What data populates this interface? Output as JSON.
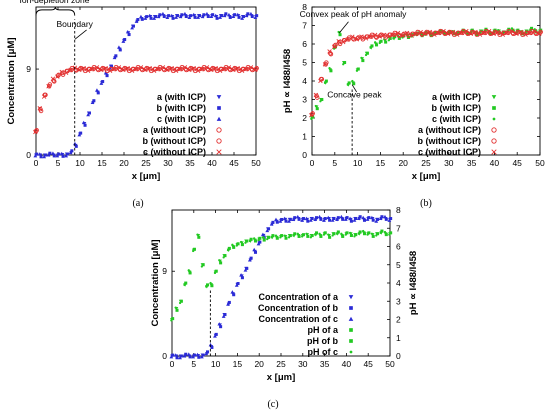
{
  "colors": {
    "blue": "#2b2bd6",
    "red": "#e23030",
    "green": "#22c922",
    "axis": "#000000"
  },
  "chart_data": [
    {
      "id": "a",
      "panel_label": "(a)",
      "type": "scatter",
      "xlabel": "x [μm]",
      "ylabel": "Concentration [μM]",
      "xlim": [
        0,
        50
      ],
      "ylim": [
        0,
        15.5
      ],
      "xticks": [
        0,
        5,
        10,
        15,
        20,
        25,
        30,
        35,
        40,
        45,
        50
      ],
      "yticks": [
        0,
        9
      ],
      "grid": false,
      "legend_position": "right",
      "legend": [
        "a (with ICP)",
        "b (with ICP)",
        "c (with ICP)",
        "a (without ICP)",
        "b (without ICP)",
        "c (without ICP)"
      ],
      "annotations": [
        {
          "text": "Ion-depletion zone",
          "x": 4.2,
          "y": 15.9
        },
        {
          "text": "Boundary",
          "x": 8.8,
          "y": 13.4
        }
      ],
      "dashed_marker": {
        "x": 8.8,
        "y_from": 0,
        "y_to": 14.2
      },
      "series": [
        {
          "name": "with ICP",
          "color": "blue",
          "x": [
            0,
            1,
            2,
            3,
            4,
            5,
            6,
            7,
            8,
            9,
            10,
            11,
            12,
            13,
            14,
            15,
            16,
            17,
            18,
            19,
            20,
            21,
            22,
            23,
            24,
            25,
            26,
            27,
            28,
            29,
            30,
            31,
            32,
            33,
            34,
            35,
            36,
            37,
            38,
            39,
            40,
            41,
            42,
            43,
            44,
            45,
            46,
            47,
            48,
            49,
            50
          ],
          "y": [
            0,
            0,
            0,
            0,
            0,
            0,
            0.05,
            0.1,
            0.25,
            1.0,
            2.2,
            3.3,
            4.4,
            5.5,
            6.6,
            7.6,
            8.5,
            9.3,
            10.2,
            11.1,
            12.0,
            12.8,
            13.5,
            14.0,
            14.3,
            14.4,
            14.5,
            14.5,
            14.5,
            14.6,
            14.5,
            14.5,
            14.6,
            14.5,
            14.6,
            14.5,
            14.6,
            14.6,
            14.5,
            14.6,
            14.6,
            14.5,
            14.6,
            14.6,
            14.5,
            14.6,
            14.6,
            14.5,
            14.6,
            14.6,
            14.5
          ]
        },
        {
          "name": "without ICP",
          "color": "red",
          "x": [
            0,
            1,
            2,
            3,
            4,
            5,
            6,
            7,
            8,
            9,
            10,
            11,
            12,
            13,
            14,
            15,
            16,
            17,
            18,
            19,
            20,
            21,
            22,
            23,
            24,
            25,
            26,
            27,
            28,
            29,
            30,
            31,
            32,
            33,
            34,
            35,
            36,
            37,
            38,
            39,
            40,
            41,
            42,
            43,
            44,
            45,
            46,
            47,
            48,
            49,
            50
          ],
          "y": [
            2.5,
            4.8,
            6.3,
            7.2,
            7.8,
            8.3,
            8.6,
            8.8,
            8.9,
            8.95,
            9.0,
            9.0,
            9.0,
            9.0,
            9.0,
            9.0,
            9.0,
            9.0,
            9.0,
            9.0,
            9.0,
            9.0,
            9.0,
            9.0,
            9.0,
            9.0,
            9.0,
            9.0,
            9.0,
            9.0,
            9.0,
            9.0,
            9.0,
            9.0,
            9.0,
            9.0,
            9.0,
            9.0,
            9.0,
            9.0,
            9.0,
            9.0,
            9.0,
            9.0,
            9.0,
            9.0,
            9.0,
            9.0,
            9.0,
            9.0,
            9.0
          ]
        }
      ]
    },
    {
      "id": "b",
      "panel_label": "(b)",
      "type": "scatter",
      "xlabel": "x [μm]",
      "ylabel": "pH ∝ I488/I458",
      "xlim": [
        0,
        50
      ],
      "ylim": [
        0,
        8
      ],
      "xticks": [
        0,
        5,
        10,
        15,
        20,
        25,
        30,
        35,
        40,
        45,
        50
      ],
      "yticks": [
        0,
        1,
        2,
        3,
        4,
        5,
        6,
        7,
        8
      ],
      "grid": false,
      "legend_position": "right",
      "legend": [
        "a (with ICP)",
        "b (with ICP)",
        "c (with ICP)",
        "a (without ICP)",
        "b (without ICP)",
        "c (without ICP)"
      ],
      "annotations": [
        {
          "text": "Convex peak of pH anomaly",
          "x": 9,
          "y": 7.45
        },
        {
          "text": "Concave peak",
          "x": 9.3,
          "y": 3.1
        }
      ],
      "dashed_marker": {
        "x": 8.8,
        "y_from": 0,
        "y_to": 3.6
      },
      "series": [
        {
          "name": "with ICP",
          "color": "green",
          "x": [
            0,
            1,
            2,
            3,
            4,
            5,
            6,
            7,
            8,
            9,
            10,
            11,
            12,
            13,
            14,
            15,
            16,
            17,
            18,
            19,
            20,
            21,
            22,
            23,
            24,
            25,
            26,
            27,
            28,
            29,
            30,
            31,
            32,
            33,
            34,
            35,
            36,
            37,
            38,
            39,
            40,
            41,
            42,
            43,
            44,
            45,
            46,
            47,
            48,
            49,
            50
          ],
          "y": [
            2.0,
            2.6,
            3.0,
            3.9,
            4.6,
            5.8,
            6.6,
            5.0,
            3.8,
            3.9,
            4.6,
            5.2,
            5.5,
            5.8,
            6.0,
            6.1,
            6.2,
            6.3,
            6.3,
            6.35,
            6.4,
            6.45,
            6.5,
            6.5,
            6.5,
            6.55,
            6.55,
            6.6,
            6.6,
            6.6,
            6.6,
            6.65,
            6.6,
            6.65,
            6.6,
            6.7,
            6.6,
            6.7,
            6.7,
            6.6,
            6.7,
            6.7,
            6.65,
            6.7,
            6.75,
            6.7,
            6.65,
            6.7,
            6.75,
            6.7,
            6.7
          ]
        },
        {
          "name": "without ICP",
          "color": "red",
          "x": [
            0,
            1,
            2,
            3,
            4,
            5,
            6,
            7,
            8,
            9,
            10,
            11,
            12,
            13,
            14,
            15,
            16,
            17,
            18,
            19,
            20,
            21,
            22,
            23,
            24,
            25,
            26,
            27,
            28,
            29,
            30,
            31,
            32,
            33,
            34,
            35,
            36,
            37,
            38,
            39,
            40,
            41,
            42,
            43,
            44,
            45,
            46,
            47,
            48,
            49,
            50
          ],
          "y": [
            2.2,
            3.2,
            4.1,
            4.9,
            5.5,
            5.9,
            6.1,
            6.2,
            6.25,
            6.3,
            6.3,
            6.35,
            6.4,
            6.4,
            6.4,
            6.45,
            6.45,
            6.5,
            6.5,
            6.5,
            6.5,
            6.55,
            6.55,
            6.55,
            6.55,
            6.6,
            6.6,
            6.6,
            6.6,
            6.6,
            6.6,
            6.6,
            6.6,
            6.6,
            6.6,
            6.6,
            6.6,
            6.6,
            6.6,
            6.6,
            6.6,
            6.6,
            6.6,
            6.6,
            6.6,
            6.6,
            6.6,
            6.6,
            6.6,
            6.6,
            6.6
          ]
        }
      ]
    },
    {
      "id": "c",
      "panel_label": "(c)",
      "type": "scatter",
      "xlabel": "x [μm]",
      "ylabel": "Concentration [μM]",
      "y2label": "pH ∝ I488/I458",
      "xlim": [
        0,
        50
      ],
      "ylim": [
        0,
        15.5
      ],
      "y2lim": [
        0,
        8
      ],
      "xticks": [
        0,
        5,
        10,
        15,
        20,
        25,
        30,
        35,
        40,
        45,
        50
      ],
      "yticks": [
        0,
        9
      ],
      "y2ticks": [
        0,
        1,
        2,
        3,
        4,
        5,
        6,
        7,
        8
      ],
      "grid": false,
      "legend_position": "bottom-right",
      "legend": [
        "Concentration of a",
        "Concentration of b",
        "Concentration of c",
        "pH of a",
        "pH of b",
        "pH of c"
      ],
      "dashed_marker": {
        "x": 8.8,
        "y_from": 0,
        "y_to": 3.6,
        "axis": "y2"
      },
      "series": [
        {
          "name": "Concentration",
          "color": "blue",
          "axis": "y",
          "x": [
            0,
            1,
            2,
            3,
            4,
            5,
            6,
            7,
            8,
            9,
            10,
            11,
            12,
            13,
            14,
            15,
            16,
            17,
            18,
            19,
            20,
            21,
            22,
            23,
            24,
            25,
            26,
            27,
            28,
            29,
            30,
            31,
            32,
            33,
            34,
            35,
            36,
            37,
            38,
            39,
            40,
            41,
            42,
            43,
            44,
            45,
            46,
            47,
            48,
            49,
            50
          ],
          "y": [
            0,
            0,
            0,
            0,
            0,
            0,
            0.05,
            0.1,
            0.25,
            1.0,
            2.2,
            3.3,
            4.4,
            5.5,
            6.6,
            7.6,
            8.5,
            9.3,
            10.2,
            11.1,
            12.0,
            12.8,
            13.5,
            14.0,
            14.3,
            14.4,
            14.5,
            14.5,
            14.5,
            14.6,
            14.5,
            14.5,
            14.6,
            14.5,
            14.6,
            14.5,
            14.6,
            14.6,
            14.5,
            14.6,
            14.6,
            14.5,
            14.6,
            14.6,
            14.5,
            14.6,
            14.6,
            14.5,
            14.6,
            14.6,
            14.5
          ]
        },
        {
          "name": "pH",
          "color": "green",
          "axis": "y2",
          "x": [
            0,
            1,
            2,
            3,
            4,
            5,
            6,
            7,
            8,
            9,
            10,
            11,
            12,
            13,
            14,
            15,
            16,
            17,
            18,
            19,
            20,
            21,
            22,
            23,
            24,
            25,
            26,
            27,
            28,
            29,
            30,
            31,
            32,
            33,
            34,
            35,
            36,
            37,
            38,
            39,
            40,
            41,
            42,
            43,
            44,
            45,
            46,
            47,
            48,
            49,
            50
          ],
          "y": [
            2.0,
            2.6,
            3.0,
            3.9,
            4.6,
            5.8,
            6.6,
            5.0,
            3.8,
            3.9,
            4.6,
            5.2,
            5.5,
            5.8,
            6.0,
            6.1,
            6.2,
            6.3,
            6.3,
            6.35,
            6.4,
            6.45,
            6.5,
            6.5,
            6.5,
            6.55,
            6.55,
            6.6,
            6.6,
            6.6,
            6.6,
            6.65,
            6.6,
            6.65,
            6.6,
            6.7,
            6.6,
            6.7,
            6.7,
            6.6,
            6.7,
            6.7,
            6.65,
            6.7,
            6.75,
            6.7,
            6.65,
            6.7,
            6.75,
            6.7,
            6.7
          ]
        }
      ]
    }
  ],
  "legend_markers": {
    "a": [
      {
        "color": "blue",
        "shape": "tri-down"
      },
      {
        "color": "blue",
        "shape": "square"
      },
      {
        "color": "blue",
        "shape": "tri-up"
      },
      {
        "color": "red",
        "shape": "circle"
      },
      {
        "color": "red",
        "shape": "circle"
      },
      {
        "color": "red",
        "shape": "cross"
      }
    ],
    "b": [
      {
        "color": "green",
        "shape": "tri-down"
      },
      {
        "color": "green",
        "shape": "square"
      },
      {
        "color": "green",
        "shape": "dot"
      },
      {
        "color": "red",
        "shape": "circle"
      },
      {
        "color": "red",
        "shape": "circle"
      },
      {
        "color": "red",
        "shape": "cross"
      }
    ],
    "c": [
      {
        "color": "blue",
        "shape": "tri-down"
      },
      {
        "color": "blue",
        "shape": "square"
      },
      {
        "color": "blue",
        "shape": "tri-up"
      },
      {
        "color": "green",
        "shape": "square"
      },
      {
        "color": "green",
        "shape": "square"
      },
      {
        "color": "green",
        "shape": "dot"
      }
    ]
  }
}
